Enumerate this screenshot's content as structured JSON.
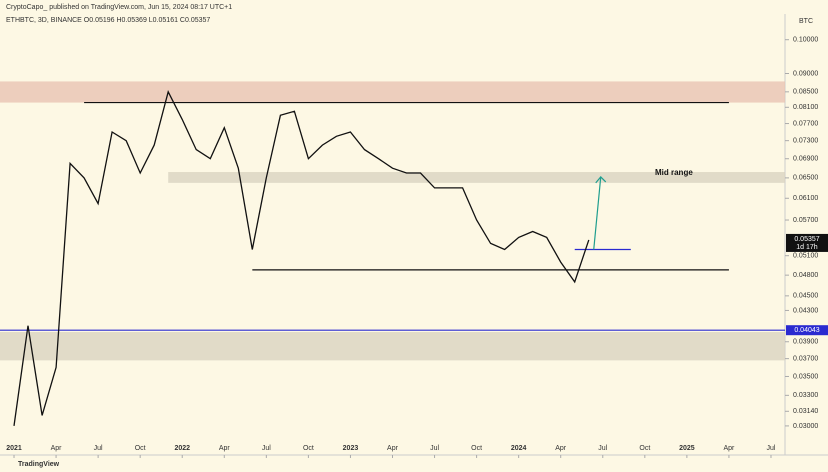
{
  "header": {
    "publisher": "CryptoCapo_ published on TradingView.com, Jun 15, 2024 08:17 UTC+1"
  },
  "footer": {
    "brand": "TradingView"
  },
  "chart_data": {
    "type": "line",
    "legend_text": "ETHBTC, 3D, BINANCE  O0.05196  H0.05369  L0.05161  C0.05357",
    "currency": "BTC",
    "annotation": "Mid range",
    "log_scale": true,
    "color": "#111111",
    "x": [
      "2021-01",
      "2021-02",
      "2021-03",
      "2021-04",
      "2021-05",
      "2021-06",
      "2021-07",
      "2021-08",
      "2021-09",
      "2021-10",
      "2021-11",
      "2021-12",
      "2022-01",
      "2022-02",
      "2022-03",
      "2022-04",
      "2022-05",
      "2022-06",
      "2022-07",
      "2022-08",
      "2022-09",
      "2022-10",
      "2022-11",
      "2022-12",
      "2023-01",
      "2023-02",
      "2023-03",
      "2023-04",
      "2023-05",
      "2023-06",
      "2023-07",
      "2023-08",
      "2023-09",
      "2023-10",
      "2023-11",
      "2023-12",
      "2024-01",
      "2024-02",
      "2024-03",
      "2024-04",
      "2024-05",
      "2024-06"
    ],
    "values": [
      0.03,
      0.041,
      0.031,
      0.036,
      0.068,
      0.065,
      0.06,
      0.075,
      0.073,
      0.066,
      0.072,
      0.085,
      0.078,
      0.071,
      0.069,
      0.076,
      0.067,
      0.052,
      0.065,
      0.079,
      0.08,
      0.069,
      0.072,
      0.074,
      0.075,
      0.071,
      0.069,
      0.067,
      0.066,
      0.066,
      0.063,
      0.063,
      0.063,
      0.057,
      0.053,
      0.052,
      0.054,
      0.055,
      0.054,
      0.05,
      0.047,
      0.05357
    ],
    "xlim": [
      "2020-12",
      "2025-08"
    ],
    "xticks": [
      {
        "value": "2021-01",
        "label": "2021"
      },
      {
        "value": "2021-04",
        "label": "Apr"
      },
      {
        "value": "2021-07",
        "label": "Jul"
      },
      {
        "value": "2021-10",
        "label": "Oct"
      },
      {
        "value": "2022-01",
        "label": "2022"
      },
      {
        "value": "2022-04",
        "label": "Apr"
      },
      {
        "value": "2022-07",
        "label": "Jul"
      },
      {
        "value": "2022-10",
        "label": "Oct"
      },
      {
        "value": "2023-01",
        "label": "2023"
      },
      {
        "value": "2023-04",
        "label": "Apr"
      },
      {
        "value": "2023-07",
        "label": "Jul"
      },
      {
        "value": "2023-10",
        "label": "Oct"
      },
      {
        "value": "2024-01",
        "label": "2024"
      },
      {
        "value": "2024-04",
        "label": "Apr"
      },
      {
        "value": "2024-07",
        "label": "Jul"
      },
      {
        "value": "2024-10",
        "label": "Oct"
      },
      {
        "value": "2025-01",
        "label": "2025"
      },
      {
        "value": "2025-04",
        "label": "Apr"
      },
      {
        "value": "2025-07",
        "label": "Jul"
      }
    ],
    "ylim": [
      0.0274,
      0.107
    ],
    "yticks": [
      {
        "value": 0.1,
        "label": "0.10000"
      },
      {
        "value": 0.09,
        "label": "0.09000"
      },
      {
        "value": 0.085,
        "label": "0.08500"
      },
      {
        "value": 0.081,
        "label": "0.08100"
      },
      {
        "value": 0.077,
        "label": "0.07700"
      },
      {
        "value": 0.073,
        "label": "0.07300"
      },
      {
        "value": 0.069,
        "label": "0.06900"
      },
      {
        "value": 0.065,
        "label": "0.06500"
      },
      {
        "value": 0.061,
        "label": "0.06100"
      },
      {
        "value": 0.057,
        "label": "0.05700"
      },
      {
        "value": 0.051,
        "label": "0.05100"
      },
      {
        "value": 0.048,
        "label": "0.04800"
      },
      {
        "value": 0.045,
        "label": "0.04500"
      },
      {
        "value": 0.043,
        "label": "0.04300"
      },
      {
        "value": 0.039,
        "label": "0.03900"
      },
      {
        "value": 0.037,
        "label": "0.03700"
      },
      {
        "value": 0.035,
        "label": "0.03500"
      },
      {
        "value": 0.033,
        "label": "0.03300"
      },
      {
        "value": 0.0314,
        "label": "0.03140"
      },
      {
        "value": 0.03,
        "label": "0.03000"
      }
    ],
    "bands": [
      {
        "range": [
          0.0822,
          0.0878
        ],
        "color": "#e9c3b3"
      },
      {
        "range": [
          0.064,
          0.0662
        ],
        "color": "#d9d3c0",
        "from": "2021-12"
      },
      {
        "range": [
          0.0368,
          0.0402
        ],
        "color": "#d9d3c0"
      }
    ],
    "levels": [
      {
        "value": 0.0822,
        "from": "2021-06",
        "to": "2025-04",
        "color": "#111111"
      },
      {
        "value": 0.0488,
        "from": "2022-06",
        "to": "2025-04",
        "color": "#111111"
      },
      {
        "value": 0.052,
        "from": "2024-05",
        "to": "2024-09",
        "color": "#2a2ad0"
      }
    ],
    "blue_level": 0.04043,
    "blue_color": "#2a2ad0",
    "arrow": {
      "from": [
        "2024-06",
        0.052
      ],
      "to": [
        "2024-06",
        0.0652
      ],
      "color": "#1f9e8e"
    },
    "last_price": 0.05357,
    "countdown": "1d 17h"
  }
}
